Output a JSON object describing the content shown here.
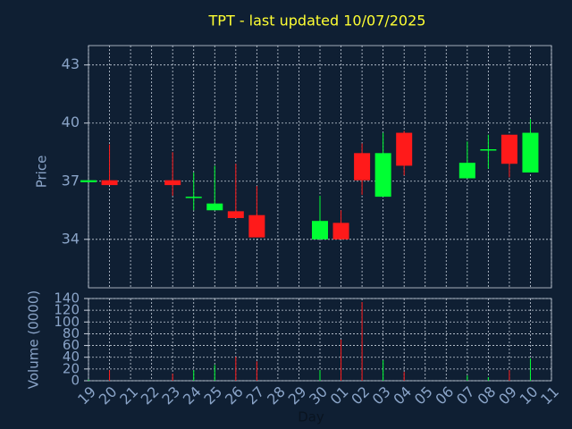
{
  "chart_data": {
    "type": "candlestick",
    "title": "TPT - last updated 10/07/2025",
    "ylabel": "Price",
    "xlabel": "Day",
    "categories": [
      "19",
      "20",
      "21",
      "22",
      "23",
      "24",
      "25",
      "26",
      "27",
      "28",
      "29",
      "30",
      "01",
      "02",
      "03",
      "04",
      "05",
      "06",
      "07",
      "08",
      "09",
      "10",
      "11"
    ],
    "open": [
      36.95,
      37.05,
      null,
      null,
      37.05,
      36.15,
      35.5,
      35.45,
      35.25,
      null,
      null,
      34.0,
      34.85,
      38.45,
      36.2,
      39.5,
      null,
      null,
      37.15,
      38.6,
      39.4,
      37.45,
      null
    ],
    "high": [
      37.05,
      38.9,
      null,
      null,
      38.5,
      37.45,
      37.8,
      37.9,
      36.75,
      null,
      null,
      36.25,
      35.5,
      38.95,
      39.5,
      39.6,
      null,
      null,
      39.05,
      39.4,
      39.4,
      40.2,
      null
    ],
    "low": [
      36.95,
      36.8,
      null,
      null,
      36.25,
      35.5,
      35.5,
      35.1,
      34.1,
      null,
      null,
      34.0,
      34.0,
      36.3,
      36.2,
      37.3,
      null,
      null,
      37.15,
      37.65,
      37.2,
      37.45,
      null
    ],
    "close": [
      37.05,
      36.8,
      null,
      null,
      36.8,
      36.2,
      35.85,
      35.1,
      34.1,
      null,
      null,
      34.95,
      34.0,
      37.05,
      38.45,
      37.8,
      null,
      null,
      37.95,
      38.65,
      37.9,
      39.5,
      null
    ],
    "up_color": "#00ff33",
    "down_color": "#ff1a1a",
    "ylim": [
      31.5,
      44
    ],
    "yticks": [
      34,
      37,
      40,
      43
    ],
    "grid": true,
    "volume": {
      "ylabel": "Volume (0000)",
      "values": [
        2,
        18,
        null,
        null,
        12,
        18,
        27,
        41,
        33,
        null,
        null,
        18,
        70,
        134,
        35,
        15,
        null,
        null,
        9,
        6,
        18,
        38,
        null
      ],
      "ylim": [
        0,
        140
      ],
      "yticks": [
        0,
        20,
        40,
        60,
        80,
        100,
        120,
        140
      ]
    }
  }
}
